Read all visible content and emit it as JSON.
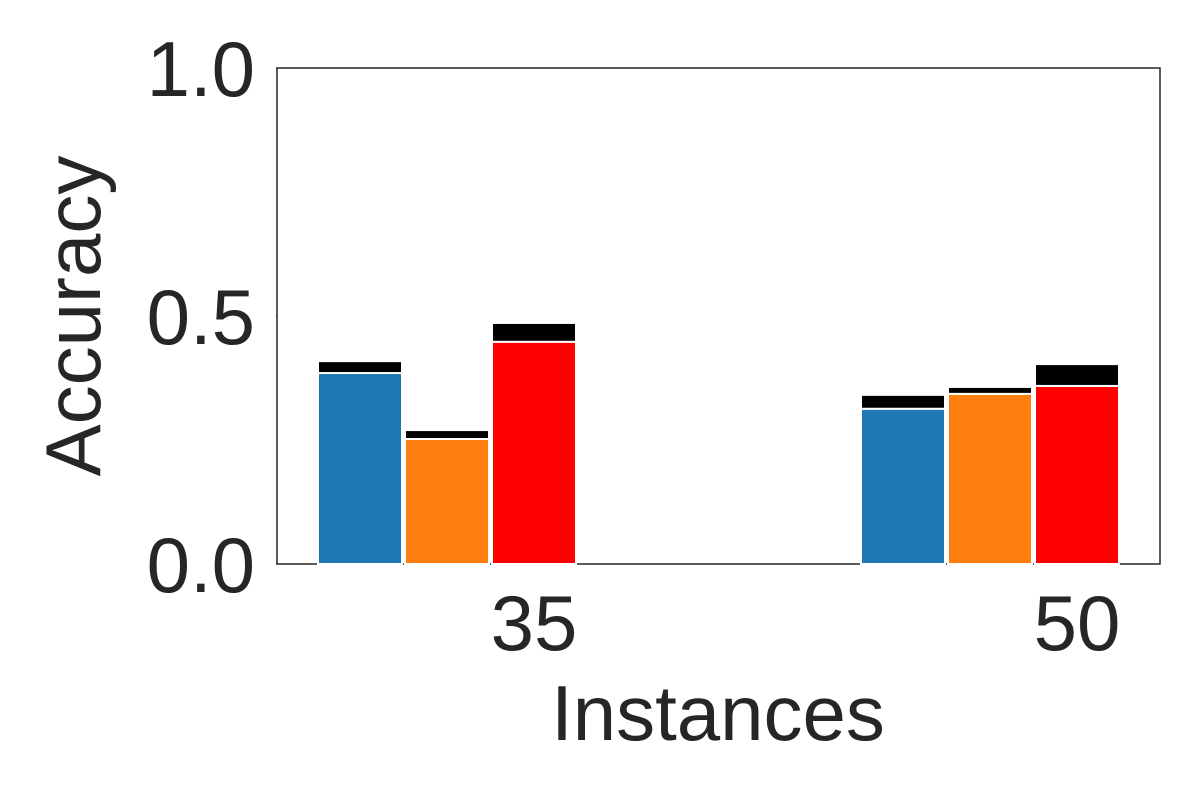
{
  "chart_data": {
    "type": "bar",
    "x_label": "Instances",
    "y_label": "Accuracy",
    "categories": [
      "35",
      "50"
    ],
    "series": [
      {
        "color": "#1f77b4",
        "values": [
          0.385,
          0.313
        ],
        "extra": {
          "color": "#000000",
          "values": [
            0.024,
            0.028
          ]
        }
      },
      {
        "color": "#ff7f0e",
        "values": [
          0.252,
          0.343
        ],
        "extra": {
          "color": "#000000",
          "values": [
            0.018,
            0.014
          ]
        }
      },
      {
        "color": "#ff0000",
        "values": [
          0.448,
          0.359
        ],
        "extra": {
          "color": "#000000",
          "values": [
            0.038,
            0.044
          ]
        }
      }
    ],
    "ylim": [
      0,
      1
    ],
    "yticks": [
      {
        "value": 0,
        "label": "0.0"
      },
      0.5,
      {
        "value": 1,
        "label": "1.0"
      }
    ],
    "grid": false
  }
}
